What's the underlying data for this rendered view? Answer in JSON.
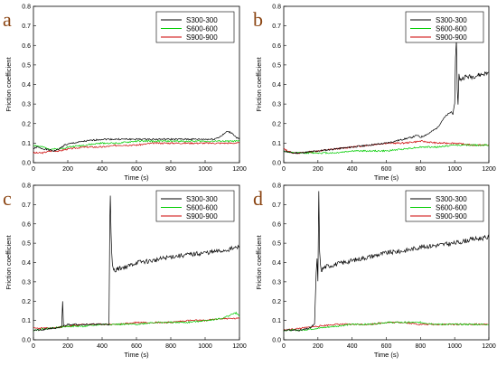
{
  "chart_data": [
    {
      "type": "line",
      "panel_label": "a",
      "xlabel": "Time (s)",
      "ylabel": "Friction coefficient",
      "xlim": [
        0,
        1200
      ],
      "ylim": [
        0,
        0.8
      ],
      "xticks": [
        0,
        200,
        400,
        600,
        800,
        1000,
        1200
      ],
      "yticks": [
        0.0,
        0.1,
        0.2,
        0.3,
        0.4,
        0.5,
        0.6,
        0.7,
        0.8
      ],
      "legend_position": "top-right",
      "series": [
        {
          "name": "S300-300",
          "color": "#000000",
          "x": [
            0,
            20,
            60,
            120,
            150,
            180,
            230,
            300,
            400,
            500,
            600,
            700,
            800,
            900,
            1000,
            1050,
            1080,
            1100,
            1130,
            1160,
            1180,
            1200
          ],
          "y": [
            0.07,
            0.08,
            0.07,
            0.06,
            0.07,
            0.09,
            0.1,
            0.11,
            0.12,
            0.12,
            0.12,
            0.12,
            0.12,
            0.12,
            0.12,
            0.12,
            0.13,
            0.14,
            0.16,
            0.15,
            0.13,
            0.12
          ]
        },
        {
          "name": "S600-600",
          "color": "#00cc00",
          "x": [
            0,
            50,
            100,
            150,
            200,
            300,
            400,
            500,
            600,
            700,
            800,
            900,
            1000,
            1100,
            1200
          ],
          "y": [
            0.09,
            0.08,
            0.07,
            0.07,
            0.08,
            0.09,
            0.1,
            0.1,
            0.11,
            0.11,
            0.11,
            0.11,
            0.11,
            0.11,
            0.11
          ]
        },
        {
          "name": "S900-900",
          "color": "#cc0000",
          "x": [
            0,
            50,
            100,
            150,
            200,
            300,
            400,
            500,
            600,
            700,
            800,
            900,
            1000,
            1100,
            1200
          ],
          "y": [
            0.05,
            0.05,
            0.06,
            0.06,
            0.07,
            0.08,
            0.08,
            0.09,
            0.09,
            0.1,
            0.1,
            0.1,
            0.1,
            0.1,
            0.1
          ]
        }
      ]
    },
    {
      "type": "line",
      "panel_label": "b",
      "xlabel": "Time (s)",
      "ylabel": "Friction coefficient",
      "xlim": [
        0,
        1200
      ],
      "ylim": [
        0,
        0.8
      ],
      "xticks": [
        0,
        200,
        400,
        600,
        800,
        1000,
        1200
      ],
      "yticks": [
        0.0,
        0.1,
        0.2,
        0.3,
        0.4,
        0.5,
        0.6,
        0.7,
        0.8
      ],
      "legend_position": "top-right",
      "series": [
        {
          "name": "S300-300",
          "color": "#000000",
          "x": [
            0,
            50,
            100,
            200,
            300,
            400,
            500,
            600,
            650,
            700,
            750,
            780,
            800,
            850,
            900,
            930,
            950,
            980,
            990,
            1000,
            1005,
            1010,
            1015,
            1020,
            1025,
            1030,
            1040,
            1060,
            1100,
            1150,
            1200
          ],
          "y": [
            0.06,
            0.05,
            0.05,
            0.06,
            0.07,
            0.08,
            0.09,
            0.1,
            0.11,
            0.12,
            0.13,
            0.14,
            0.13,
            0.15,
            0.18,
            0.22,
            0.24,
            0.26,
            0.25,
            0.3,
            0.55,
            0.62,
            0.38,
            0.3,
            0.45,
            0.42,
            0.43,
            0.44,
            0.44,
            0.45,
            0.46
          ]
        },
        {
          "name": "S600-600",
          "color": "#00cc00",
          "x": [
            0,
            50,
            100,
            200,
            300,
            400,
            500,
            600,
            700,
            800,
            900,
            1000,
            1100,
            1200
          ],
          "y": [
            0.06,
            0.05,
            0.05,
            0.05,
            0.05,
            0.06,
            0.06,
            0.06,
            0.07,
            0.08,
            0.08,
            0.09,
            0.09,
            0.09
          ]
        },
        {
          "name": "S900-900",
          "color": "#cc0000",
          "x": [
            0,
            50,
            100,
            200,
            300,
            400,
            500,
            600,
            700,
            800,
            900,
            1000,
            1100,
            1200
          ],
          "y": [
            0.07,
            0.05,
            0.05,
            0.06,
            0.07,
            0.08,
            0.09,
            0.1,
            0.1,
            0.11,
            0.1,
            0.1,
            0.09,
            0.09
          ]
        }
      ]
    },
    {
      "type": "line",
      "panel_label": "c",
      "xlabel": "Time (s)",
      "ylabel": "Friction coefficient",
      "xlim": [
        0,
        1200
      ],
      "ylim": [
        0,
        0.8
      ],
      "xticks": [
        0,
        200,
        400,
        600,
        800,
        1000,
        1200
      ],
      "yticks": [
        0.0,
        0.1,
        0.2,
        0.3,
        0.4,
        0.5,
        0.6,
        0.7,
        0.8
      ],
      "legend_position": "top-right",
      "series": [
        {
          "name": "S300-300",
          "color": "#000000",
          "x": [
            0,
            50,
            100,
            150,
            165,
            170,
            175,
            200,
            300,
            400,
            440,
            445,
            448,
            452,
            456,
            460,
            470,
            500,
            550,
            600,
            700,
            800,
            900,
            1000,
            1100,
            1150,
            1200
          ],
          "y": [
            0.05,
            0.05,
            0.06,
            0.06,
            0.07,
            0.2,
            0.07,
            0.08,
            0.08,
            0.08,
            0.08,
            0.6,
            0.74,
            0.55,
            0.45,
            0.38,
            0.36,
            0.37,
            0.38,
            0.4,
            0.41,
            0.43,
            0.44,
            0.45,
            0.46,
            0.47,
            0.48
          ]
        },
        {
          "name": "S600-600",
          "color": "#00cc00",
          "x": [
            0,
            100,
            200,
            300,
            400,
            500,
            600,
            700,
            800,
            900,
            1000,
            1100,
            1150,
            1180,
            1200
          ],
          "y": [
            0.05,
            0.06,
            0.07,
            0.07,
            0.08,
            0.08,
            0.08,
            0.09,
            0.09,
            0.09,
            0.1,
            0.11,
            0.13,
            0.14,
            0.12
          ]
        },
        {
          "name": "S900-900",
          "color": "#cc0000",
          "x": [
            0,
            100,
            200,
            300,
            400,
            500,
            600,
            700,
            800,
            900,
            1000,
            1100,
            1200
          ],
          "y": [
            0.06,
            0.06,
            0.07,
            0.08,
            0.08,
            0.08,
            0.09,
            0.09,
            0.09,
            0.1,
            0.1,
            0.11,
            0.11
          ]
        }
      ]
    },
    {
      "type": "line",
      "panel_label": "d",
      "xlabel": "Time (s)",
      "ylabel": "Friction coefficient",
      "xlim": [
        0,
        1200
      ],
      "ylim": [
        0,
        0.8
      ],
      "xticks": [
        0,
        200,
        400,
        600,
        800,
        1000,
        1200
      ],
      "yticks": [
        0.0,
        0.1,
        0.2,
        0.3,
        0.4,
        0.5,
        0.6,
        0.7,
        0.8
      ],
      "legend_position": "top-right",
      "series": [
        {
          "name": "S300-300",
          "color": "#000000",
          "x": [
            0,
            50,
            100,
            150,
            180,
            190,
            195,
            200,
            205,
            210,
            215,
            220,
            230,
            250,
            300,
            400,
            500,
            600,
            700,
            800,
            900,
            1000,
            1100,
            1200
          ],
          "y": [
            0.05,
            0.05,
            0.05,
            0.06,
            0.08,
            0.35,
            0.42,
            0.3,
            0.78,
            0.45,
            0.38,
            0.36,
            0.37,
            0.38,
            0.39,
            0.41,
            0.43,
            0.45,
            0.46,
            0.48,
            0.49,
            0.5,
            0.52,
            0.53
          ]
        },
        {
          "name": "S600-600",
          "color": "#00cc00",
          "x": [
            0,
            100,
            200,
            300,
            400,
            500,
            600,
            700,
            800,
            900,
            1000,
            1100,
            1200
          ],
          "y": [
            0.05,
            0.05,
            0.06,
            0.07,
            0.08,
            0.08,
            0.09,
            0.09,
            0.09,
            0.08,
            0.08,
            0.08,
            0.08
          ]
        },
        {
          "name": "S900-900",
          "color": "#cc0000",
          "x": [
            0,
            100,
            200,
            300,
            400,
            500,
            600,
            700,
            800,
            900,
            1000,
            1100,
            1200
          ],
          "y": [
            0.05,
            0.06,
            0.07,
            0.08,
            0.08,
            0.08,
            0.09,
            0.09,
            0.08,
            0.08,
            0.08,
            0.08,
            0.08
          ]
        }
      ]
    }
  ]
}
